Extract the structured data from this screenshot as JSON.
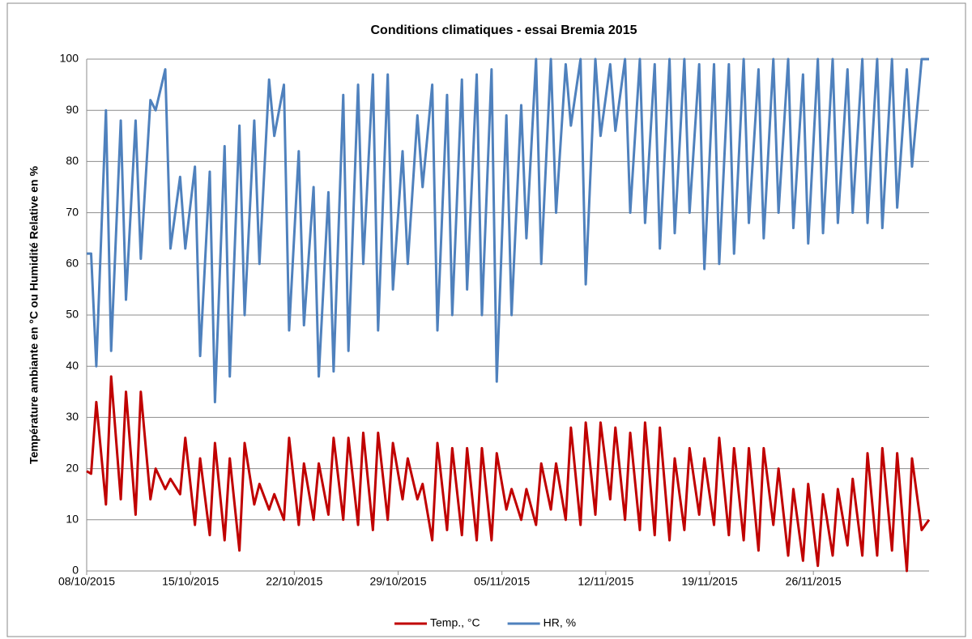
{
  "chart_data": {
    "type": "line",
    "title": "Conditions climatiques - essai Bremia 2015",
    "y_label": "Température ambiante en °C ou Humidité Relative en %",
    "x": [
      0,
      0.3,
      0.65,
      1.3,
      1.65,
      2.3,
      2.65,
      3.3,
      3.65,
      4.3,
      4.65,
      5.3,
      5.65,
      6.3,
      6.65,
      7.3,
      7.65,
      8.3,
      8.65,
      9.3,
      9.65,
      10.3,
      10.65,
      11.3,
      11.65,
      12.3,
      12.65,
      13.3,
      13.65,
      14.3,
      14.65,
      15.3,
      15.65,
      16.3,
      16.65,
      17.3,
      17.65,
      18.3,
      18.65,
      19.3,
      19.65,
      20.3,
      20.65,
      21.3,
      21.65,
      22.3,
      22.65,
      23.3,
      23.65,
      24.3,
      24.65,
      25.3,
      25.65,
      26.3,
      26.65,
      27.3,
      27.65,
      28.3,
      28.65,
      29.3,
      29.65,
      30.3,
      30.65,
      31.3,
      31.65,
      32.3,
      32.65,
      33.3,
      33.65,
      34.3,
      34.65,
      35.3,
      35.65,
      36.3,
      36.65,
      37.3,
      37.65,
      38.3,
      38.65,
      39.3,
      39.65,
      40.3,
      40.65,
      41.3,
      41.65,
      42.3,
      42.65,
      43.3,
      43.65,
      44.3,
      44.65,
      45.3,
      45.65,
      46.3,
      46.65,
      47.3,
      47.65,
      48.3,
      48.65,
      49.3,
      49.65,
      50.3,
      50.65,
      51.3,
      51.65,
      52.3,
      52.65,
      53.3,
      53.65,
      54.3,
      54.65,
      55.3,
      55.65,
      56.3,
      56.8
    ],
    "series": [
      {
        "name": "Temp., °C",
        "color": "#c00000",
        "values": [
          19.5,
          19,
          33,
          13,
          38,
          14,
          35,
          11,
          35,
          14,
          20,
          16,
          18,
          15,
          26,
          9,
          22,
          7,
          25,
          6,
          22,
          4,
          25,
          13,
          17,
          12,
          15,
          10,
          26,
          9,
          21,
          10,
          21,
          11,
          26,
          10,
          26,
          9,
          27,
          8,
          27,
          10,
          25,
          14,
          22,
          14,
          17,
          6,
          25,
          8,
          24,
          7,
          24,
          6,
          24,
          6,
          23,
          12,
          16,
          10,
          16,
          9,
          21,
          12,
          21,
          10,
          28,
          9,
          29,
          11,
          29,
          14,
          28,
          10,
          27,
          8,
          29,
          7,
          28,
          6,
          22,
          8,
          24,
          11,
          22,
          9,
          26,
          7,
          24,
          6,
          24,
          4,
          24,
          9,
          20,
          3,
          16,
          2,
          17,
          1,
          15,
          3,
          16,
          5,
          18,
          3,
          23,
          3,
          24,
          4,
          23,
          0,
          22,
          8,
          10
        ]
      },
      {
        "name": "HR, %",
        "color": "#4f81bd",
        "values": [
          62,
          62,
          40,
          90,
          43,
          88,
          53,
          88,
          61,
          92,
          90,
          98,
          63,
          77,
          63,
          79,
          42,
          78,
          33,
          83,
          38,
          87,
          50,
          88,
          60,
          96,
          85,
          95,
          47,
          82,
          48,
          75,
          38,
          74,
          39,
          93,
          43,
          95,
          60,
          97,
          47,
          97,
          55,
          82,
          60,
          89,
          75,
          95,
          47,
          93,
          50,
          96,
          55,
          97,
          50,
          98,
          37,
          89,
          50,
          91,
          65,
          100,
          60,
          100,
          70,
          99,
          87,
          100,
          56,
          100,
          85,
          99,
          86,
          100,
          70,
          100,
          68,
          99,
          63,
          100,
          66,
          100,
          70,
          99,
          59,
          99,
          60,
          99,
          62,
          100,
          68,
          98,
          65,
          100,
          70,
          100,
          67,
          97,
          64,
          100,
          66,
          100,
          68,
          98,
          70,
          100,
          68,
          100,
          67,
          100,
          71,
          98,
          79,
          100,
          100
        ]
      }
    ],
    "xlim": [
      0,
      56.8
    ],
    "xticks": [
      {
        "value": 0,
        "label": "08/10/2015"
      },
      {
        "value": 7,
        "label": "15/10/2015"
      },
      {
        "value": 14,
        "label": "22/10/2015"
      },
      {
        "value": 21,
        "label": "29/10/2015"
      },
      {
        "value": 28,
        "label": "05/11/2015"
      },
      {
        "value": 35,
        "label": "12/11/2015"
      },
      {
        "value": 42,
        "label": "19/11/2015"
      },
      {
        "value": 49,
        "label": "26/11/2015"
      }
    ],
    "ylim": [
      0,
      100
    ],
    "yticks": [
      0,
      10,
      20,
      30,
      40,
      50,
      60,
      70,
      80,
      90,
      100
    ],
    "grid": true,
    "legend": "bottom"
  }
}
